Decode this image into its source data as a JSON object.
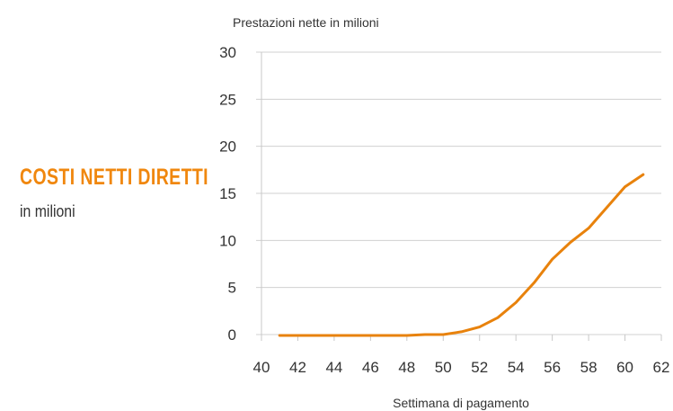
{
  "side_panel": {
    "title": "COSTI NETTI DIRETTI",
    "subtitle": "in milioni"
  },
  "colors": {
    "accent": "#f0870e",
    "line": "#e8820c",
    "grid": "#d0d0d0",
    "text": "#333333"
  },
  "chart_data": {
    "type": "line",
    "ylabel": "Prestazioni nette in milioni",
    "xlabel": "Settimana di pagamento",
    "xlim": [
      40,
      62
    ],
    "ylim": [
      0,
      30
    ],
    "xticks": [
      40,
      42,
      44,
      46,
      48,
      50,
      52,
      54,
      56,
      58,
      60,
      62
    ],
    "yticks": [
      0,
      5,
      10,
      15,
      20,
      25,
      30
    ],
    "grid": "horizontal",
    "series": [
      {
        "x": [
          41,
          42,
          43,
          44,
          45,
          46,
          47,
          48,
          49,
          50,
          51,
          52,
          53,
          54,
          55,
          56,
          57,
          58,
          59,
          60,
          61
        ],
        "y": [
          -0.1,
          -0.1,
          -0.1,
          -0.1,
          -0.1,
          -0.1,
          -0.1,
          -0.1,
          0.0,
          0.0,
          0.3,
          0.8,
          1.8,
          3.4,
          5.5,
          8.0,
          9.8,
          11.3,
          13.5,
          15.7,
          17.0
        ]
      }
    ]
  }
}
